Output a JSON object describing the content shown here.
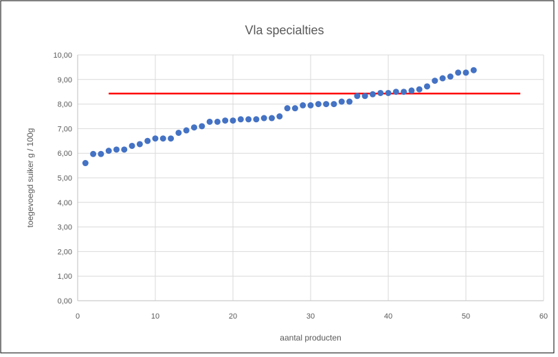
{
  "chart_data": {
    "type": "scatter",
    "title": "Vla specialties",
    "xlabel": "aantal producten",
    "ylabel": "toegevoegd suiker g / 100g",
    "xlim": [
      0,
      60
    ],
    "ylim": [
      0,
      10
    ],
    "x_ticks": [
      0,
      10,
      20,
      30,
      40,
      50,
      60
    ],
    "x_tick_labels": [
      "0",
      "10",
      "20",
      "30",
      "40",
      "50",
      "60"
    ],
    "y_ticks": [
      0,
      1,
      2,
      3,
      4,
      5,
      6,
      7,
      8,
      9,
      10
    ],
    "y_tick_labels": [
      "0,00",
      "1,00",
      "2,00",
      "3,00",
      "4,00",
      "5,00",
      "6,00",
      "7,00",
      "8,00",
      "9,00",
      "10,00"
    ],
    "grid": true,
    "legend": "none",
    "series": [
      {
        "color": "#4472C4",
        "marker": "circle",
        "x": [
          1,
          2,
          3,
          4,
          5,
          6,
          7,
          8,
          9,
          10,
          11,
          12,
          13,
          14,
          15,
          16,
          17,
          18,
          19,
          20,
          21,
          22,
          23,
          24,
          25,
          26,
          27,
          28,
          29,
          30,
          31,
          32,
          33,
          34,
          35,
          36,
          37,
          38,
          39,
          40,
          41,
          42,
          43,
          44,
          45,
          46,
          47,
          48,
          49,
          50,
          51
        ],
        "y": [
          5.6,
          5.97,
          5.97,
          6.1,
          6.15,
          6.15,
          6.3,
          6.37,
          6.5,
          6.6,
          6.6,
          6.6,
          6.83,
          6.93,
          7.05,
          7.1,
          7.28,
          7.28,
          7.33,
          7.33,
          7.38,
          7.38,
          7.38,
          7.43,
          7.43,
          7.5,
          7.83,
          7.83,
          7.95,
          7.95,
          8.0,
          8.0,
          8.0,
          8.1,
          8.1,
          8.33,
          8.33,
          8.4,
          8.45,
          8.45,
          8.5,
          8.5,
          8.55,
          8.6,
          8.72,
          8.95,
          9.05,
          9.12,
          9.28,
          9.28,
          9.38
        ]
      }
    ],
    "reference_line": {
      "color": "#FF0000",
      "x": [
        4,
        57
      ],
      "y": [
        8.43,
        8.43
      ]
    }
  }
}
